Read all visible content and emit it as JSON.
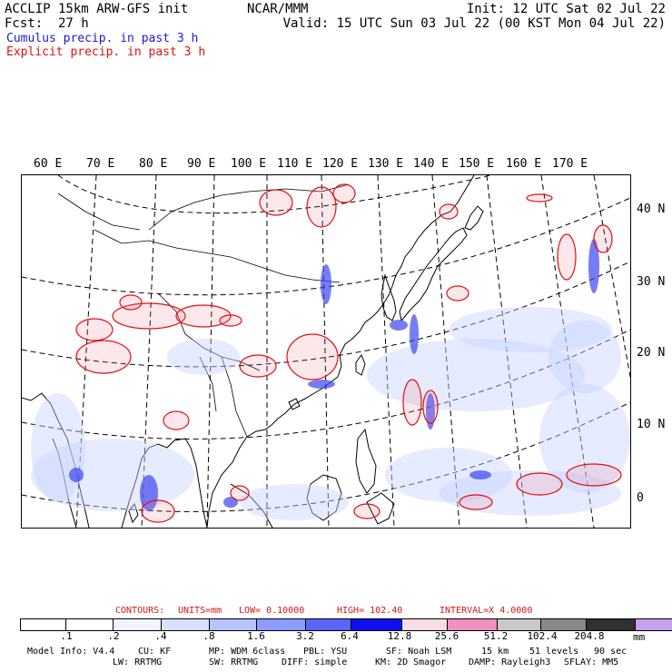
{
  "header": {
    "model_title": "ACCLIP 15km ARW-GFS init",
    "forecast_label": "Fcst:",
    "forecast_hours": "27 h",
    "center": "NCAR/MMM",
    "init": "Init: 12 UTC Sat 02 Jul 22",
    "valid": "Valid: 15 UTC Sun 03 Jul 22 (00 KST Mon 04 Jul 22)",
    "cumulus_label": "Cumulus precip. in past 3 h",
    "explicit_label": "Explicit precip. in past 3 h"
  },
  "map": {
    "lon_labels": [
      "60 E",
      "70 E",
      "80 E",
      "90 E",
      "100 E",
      "110 E",
      "120 E",
      "130 E",
      "140 E",
      "150 E",
      "160 E",
      "170 E"
    ],
    "lat_labels": [
      "40 N",
      "30 N",
      "20 N",
      "10 N",
      "0"
    ]
  },
  "contours": {
    "label": "CONTOURS:",
    "units": "UNITS=mm",
    "low": "LOW= 0.10000",
    "high": "HIGH= 102.40",
    "interval": "INTERVAL=X 4.0000"
  },
  "colorbar": {
    "colors": [
      "#ffffff",
      "#ffffff",
      "#f0f4ff",
      "#d8e0ff",
      "#b8c4ff",
      "#8e9cff",
      "#5a64ff",
      "#1010ee",
      "#f8dde4",
      "#f090c0",
      "#c8c8c8",
      "#888888",
      "#303030",
      "#c8a0f0"
    ],
    "tick_labels": [
      ".1",
      ".2",
      ".4",
      ".8",
      "1.6",
      "3.2",
      "6.4",
      "12.8",
      "25.6",
      "51.2",
      "102.4",
      "204.8"
    ],
    "unit": "mm"
  },
  "footer": {
    "line1": [
      "Model Info: V4.4",
      "CU: KF",
      "MP: WDM 6class",
      "PBL: YSU",
      "SF: Noah LSM",
      "15 km",
      "51 levels",
      "90 sec"
    ],
    "line2": [
      "LW: RRTMG",
      "SW: RRTMG",
      "DIFF: simple",
      "KM: 2D Smagor",
      "DAMP: Rayleigh3",
      "SFLAY: MM5"
    ]
  }
}
